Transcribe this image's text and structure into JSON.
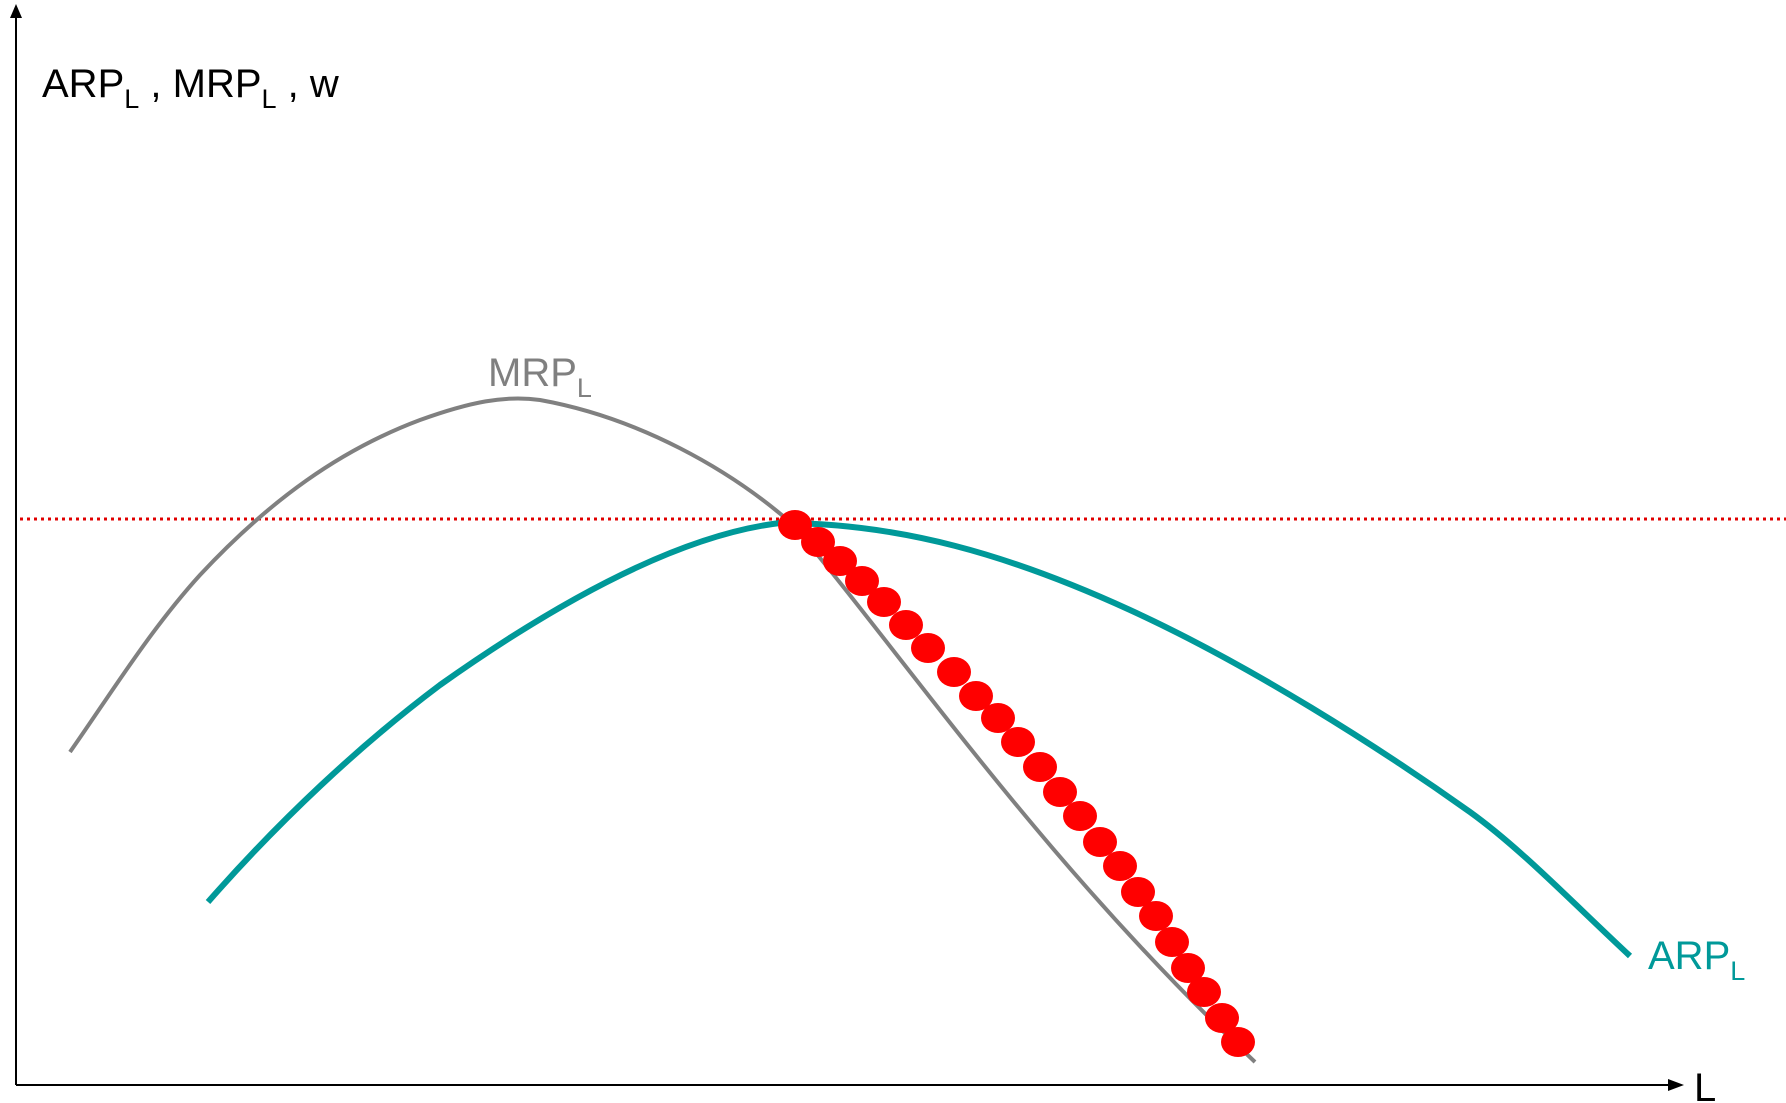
{
  "diagram": {
    "y_axis_label": {
      "parts": [
        "ARP",
        "L",
        " , MRP",
        "L",
        " , w"
      ]
    },
    "x_axis_label": "L",
    "curves": {
      "mrp": {
        "label_main": "MRP",
        "label_sub": "L",
        "color": "#808080"
      },
      "arp": {
        "label_main": "ARP",
        "label_sub": "L",
        "color": "#009999"
      },
      "wage_line": {
        "color": "#e00000",
        "style": "dotted"
      },
      "demand_curve": {
        "color": "#ff0000",
        "style": "large dots"
      }
    }
  }
}
